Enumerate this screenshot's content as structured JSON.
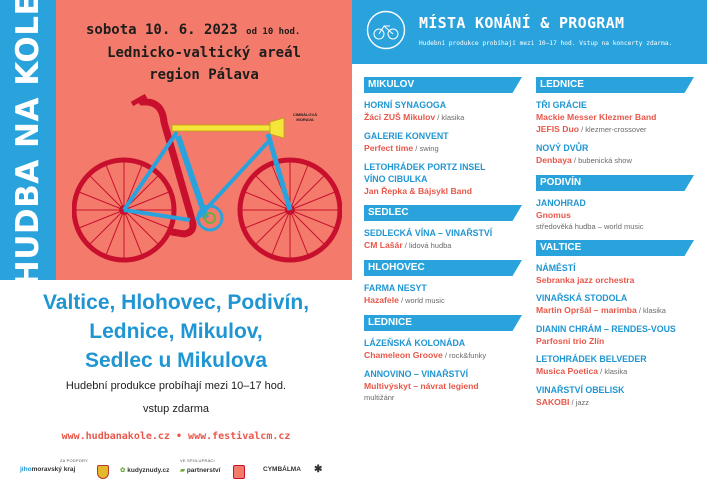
{
  "poster": {
    "vertical_title": "HUDBA NA KOLE",
    "date_text": "sobota 10. 6. 2023",
    "time_text": "od 10 hod.",
    "venue_line1": "Lednicko-valtický areál",
    "venue_line2": "region Pálava",
    "towns": [
      "Valtice, Hlohovec, Podivín,",
      "Lednice, Mikulov,",
      "Sedlec u Mikulova"
    ],
    "info_line1": "Hudební produkce probíhají mezi 10–17 hod.",
    "info_line2": "vstup zdarma",
    "web1": "www.hudbanakole.cz",
    "web_sep": "•",
    "web2": "www.festivalcm.cz",
    "cimbal_mark": "CIMBÁLOVÁ MORAVA",
    "sponsor_caption1": "ZA PODPORY",
    "sponsor_caption2": "VE SPOLUPRÁCI",
    "logos": {
      "jihomoravsky_a": "jiho",
      "jihomoravsky_b": "moravský kraj",
      "kudyznudy": "kudyznudy.cz",
      "partnerstvi": "partnerství",
      "cymbalma": "CYMBÁLMA"
    },
    "colors": {
      "coral": "#f47b6b",
      "blue": "#2aa3dd",
      "red": "#e8574a",
      "yellow": "#f5e43a",
      "crimson": "#c8102e"
    }
  },
  "program": {
    "title": "MÍSTA KONÁNÍ & PROGRAM",
    "subtitle": "Hudební produkce probíhají mezi 10–17 hod. Vstup na koncerty zdarma.",
    "logo_text": "HUDBA NA KOLE",
    "col1": {
      "mikulov": {
        "name": "MIKULOV",
        "e1_venue": "HORNÍ SYNAGOGA",
        "e1_act": "Žáci ZUŠ Mikulov",
        "e1_genre": " / klasika",
        "e2_venue": "GALERIE KONVENT",
        "e2_act": "Perfect time",
        "e2_genre": " / swing",
        "e3_venue1": "LETOHRÁDEK PORTZ INSEL",
        "e3_venue2": "VÍNO CIBULKA",
        "e3_act": "Jan Řepka & Bájsykl Band"
      },
      "sedlec": {
        "name": "SEDLEC",
        "e1_venue": "SEDLECKÁ VÍNA – VINAŘSTVÍ",
        "e1_act": "CM Lašár",
        "e1_genre": " / lidová hudba"
      },
      "hlohovec": {
        "name": "HLOHOVEC",
        "e1_venue": "FARMA NESYT",
        "e1_act": "Hazafele",
        "e1_genre": " / world music"
      },
      "lednice": {
        "name": "LEDNICE",
        "e1_venue": "LÁZEŇSKÁ KOLONÁDA",
        "e1_act": "Chameleon Groove",
        "e1_genre": " / rock&funky",
        "e2_venue": "ANNOVINO – VINAŘSTVÍ",
        "e2_act": "Multivýskyt – návrat legiend",
        "e2_note": "multižánr"
      }
    },
    "col2": {
      "lednice": {
        "name": "LEDNICE",
        "e1_venue": "TŘI GRÁCIE",
        "e1_act": "Mackie Messer Klezmer Band",
        "e1_act2": "JEFIS Duo",
        "e1_genre2": " / klezmer-crossover",
        "e2_venue": "NOVÝ DVŮR",
        "e2_act": "Denbaya",
        "e2_genre": " / bubenická show"
      },
      "podivin": {
        "name": "PODIVÍN",
        "e1_venue": "JANOHRAD",
        "e1_act": "Gnomus",
        "e1_note": "středověká hudba – world music"
      },
      "valtice": {
        "name": "VALTICE",
        "e1_venue": "NÁMĚSTÍ",
        "e1_act": "Sebranka jazz orchestra",
        "e2_venue": "VINAŘSKÁ STODOLA",
        "e2_act": "Martin Opršál – marimba",
        "e2_genre": " / klasika",
        "e3_venue": "DIANIN CHRÁM – RENDES-VOUS",
        "e3_act": "Parfosní trio Zlín",
        "e4_venue": "LETOHRÁDEK BELVEDER",
        "e4_act": "Musica Poetica",
        "e4_genre": " / klasika",
        "e5_venue": "VINAŘSTVÍ OBELISK",
        "e5_act": "SAKOBI",
        "e5_genre": " / jazz"
      }
    }
  }
}
